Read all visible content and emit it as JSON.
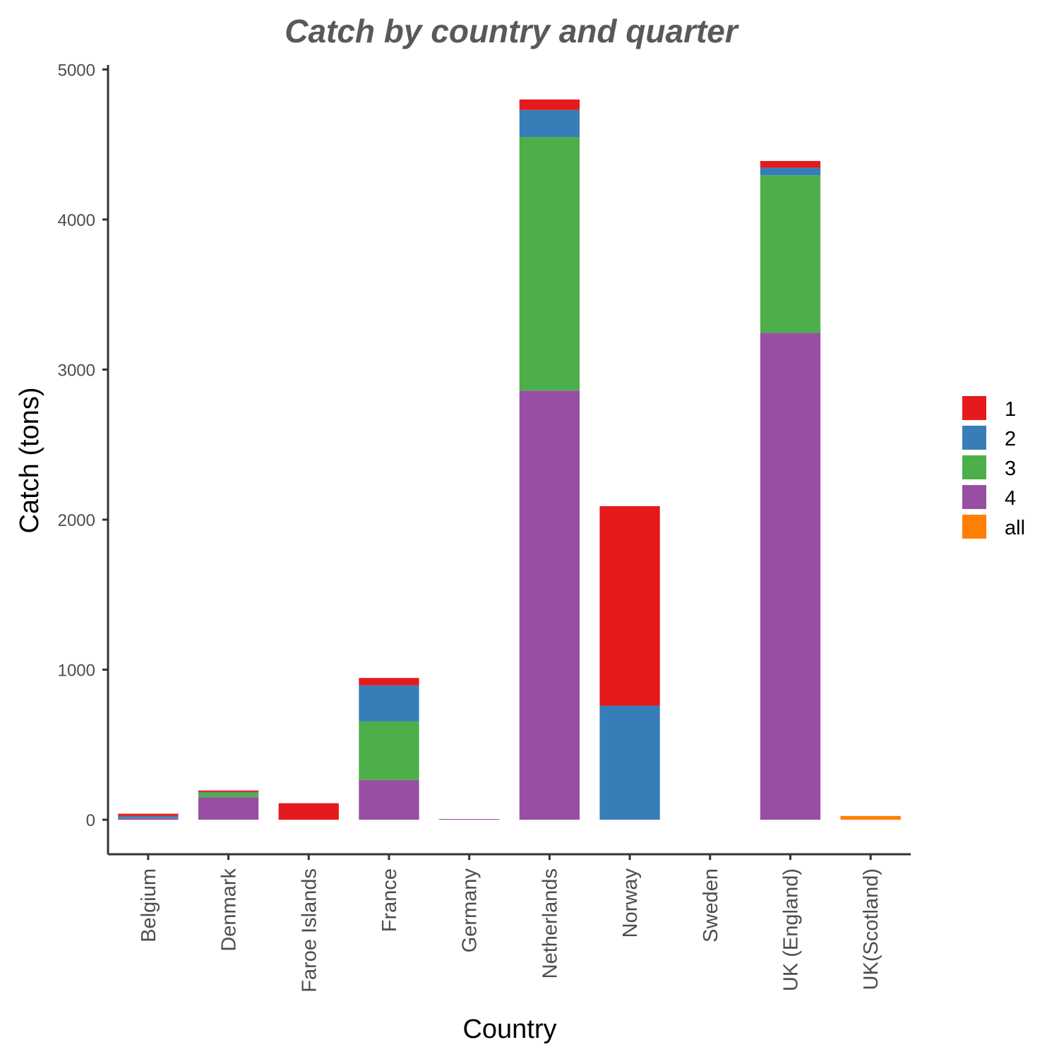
{
  "chart_data": {
    "type": "bar",
    "stacked": true,
    "title": "Catch by country and quarter",
    "xlabel": "Country",
    "ylabel": "Catch (tons)",
    "ylim": [
      -230,
      5030
    ],
    "yticks": [
      0,
      1000,
      2000,
      3000,
      4000,
      5000
    ],
    "categories": [
      "Belgium",
      "Denmark",
      "Faroe Islands",
      "France",
      "Germany",
      "Netherlands",
      "Norway",
      "Sweden",
      "UK (England)",
      "UK(Scotland)"
    ],
    "series": [
      {
        "name": "1",
        "color": "#E41A1C",
        "values": [
          15,
          10,
          110,
          50,
          0,
          70,
          1330,
          0,
          45,
          0
        ]
      },
      {
        "name": "2",
        "color": "#377EB8",
        "values": [
          12,
          5,
          0,
          240,
          0,
          180,
          760,
          0,
          50,
          0
        ]
      },
      {
        "name": "3",
        "color": "#4DAF4A",
        "values": [
          3,
          30,
          0,
          390,
          0,
          1690,
          0,
          0,
          1050,
          0
        ]
      },
      {
        "name": "4",
        "color": "#984EA3",
        "values": [
          10,
          150,
          0,
          265,
          5,
          2860,
          0,
          0,
          3245,
          0
        ]
      },
      {
        "name": "all",
        "color": "#FF7F00",
        "values": [
          0,
          0,
          0,
          0,
          0,
          0,
          0,
          0,
          0,
          25
        ]
      }
    ],
    "legend_position": "right",
    "grid": false
  }
}
